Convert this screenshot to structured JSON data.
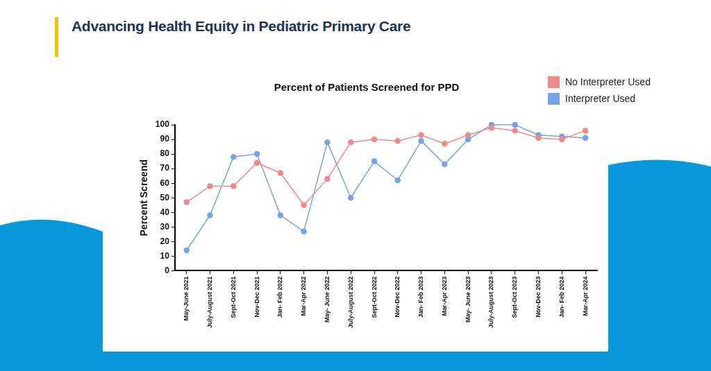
{
  "header": {
    "title": "Advancing Health Equity in Pediatric Primary Care"
  },
  "chart_data": {
    "type": "line",
    "title": "Percent of Patients Screened for PPD",
    "y_label": "Percent Screend",
    "categories": [
      "May-June 2021",
      "July-August 2021",
      "Sept-Oct 2021",
      "Nov-Dec 2021",
      "Jan- Feb 2022",
      "Mar-Apr 2022",
      "May- June 2022",
      "July-August 2022",
      "Sept-Oct 2022",
      "Nov-Dec 2022",
      "Jan- Feb 2023",
      "Mar-Apr 2023",
      "May- June 2023",
      "July-August 2023",
      "Sept-Oct 2023",
      "Nov-Dec 2023",
      "Jan- Feb 2024",
      "Mar-Apr 2024"
    ],
    "series": [
      {
        "name": "No Interpreter Used",
        "color": "#ee8a8a",
        "marker": "circle",
        "line_style": "solid",
        "values": [
          47,
          58,
          58,
          74,
          67,
          45,
          63,
          88,
          90,
          89,
          93,
          87,
          93,
          98,
          96,
          91,
          90,
          96
        ]
      },
      {
        "name": "Interpreter Used",
        "color": "#78a2e6",
        "marker": "circle",
        "line_style": "solid",
        "values": [
          14,
          38,
          78,
          80,
          38,
          27,
          88,
          50,
          75,
          62,
          89,
          73,
          90,
          100,
          100,
          93,
          92,
          91
        ]
      }
    ],
    "ylim": [
      0,
      100
    ],
    "yticks": [
      0,
      10,
      20,
      30,
      40,
      50,
      60,
      70,
      80,
      90,
      100
    ],
    "grid": false,
    "legend": "upper right"
  }
}
